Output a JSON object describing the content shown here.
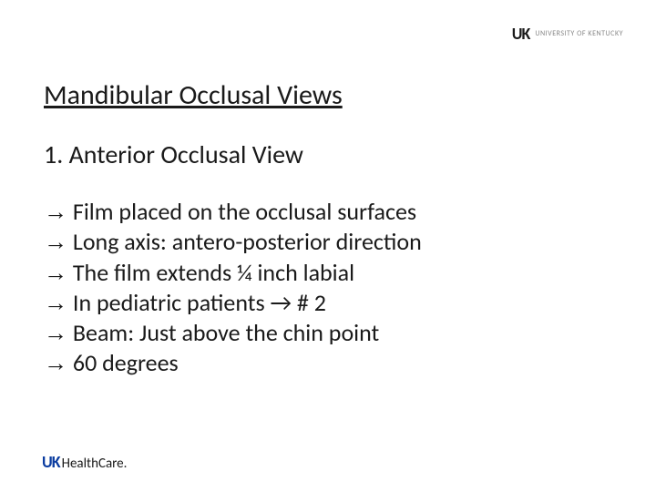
{
  "logo_top": {
    "mark": "UK",
    "text": "UNIVERSITY OF KENTUCKY"
  },
  "heading": "Mandibular Occlusal Views",
  "subheading_num": "1.",
  "subheading_text": "Anterior Occlusal View",
  "arrow": "→",
  "bullets": [
    "Film placed on the occlusal surfaces",
    "Long axis: antero-posterior direction",
    "The film extends ¼ inch labial",
    "In pediatric patients → # 2",
    "Beam: Just above the chin point",
    "60 degrees"
  ],
  "logo_bottom": {
    "uk": "UK",
    "hc": "HealthCare."
  },
  "colors": {
    "text": "#1a1a1a",
    "bg": "#ffffff",
    "uk_blue": "#0a3ca0",
    "logo_gray": "#888888"
  },
  "fontsizes": {
    "heading": 30,
    "subheading": 28,
    "body": 26,
    "logo_top_mark": 18,
    "logo_top_text": 8,
    "logo_bottom_uk": 18,
    "logo_bottom_hc": 15
  }
}
